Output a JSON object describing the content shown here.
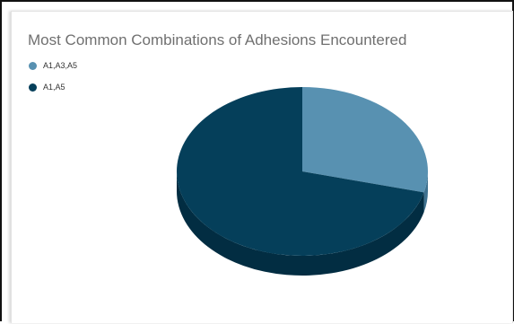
{
  "chart_data": {
    "type": "pie",
    "title": "Most Common Combinations of Adhesions Encountered",
    "categories": [
      "A1,A3,A5",
      "A1,A5"
    ],
    "values": [
      29,
      71
    ],
    "colors": [
      "#5891b1",
      "#053f5a"
    ],
    "side_colors": [
      "#3f7290",
      "#022d42"
    ],
    "legend_position": "top-left",
    "style": "3d"
  }
}
